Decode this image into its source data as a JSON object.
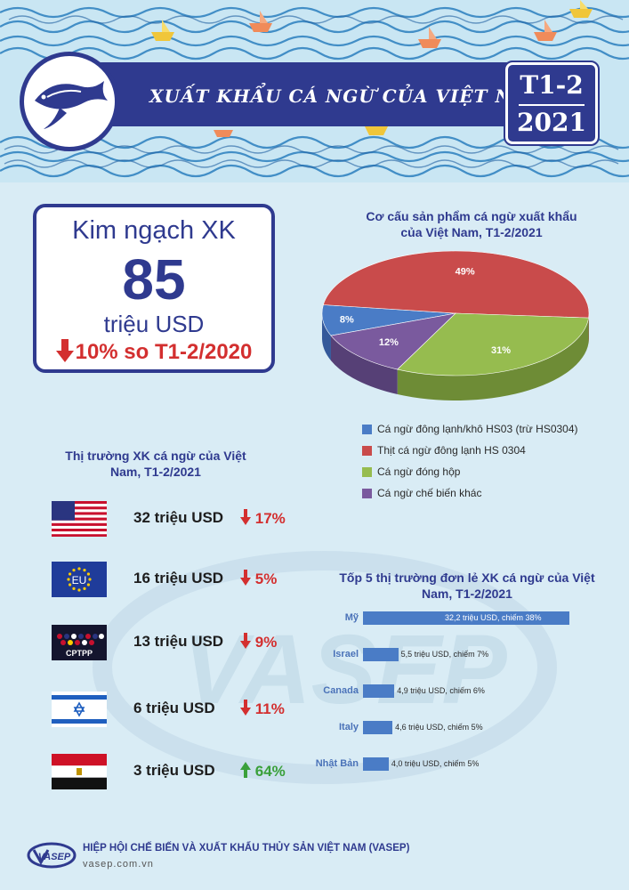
{
  "header": {
    "title": "XUẤT KHẨU CÁ NGỪ CỦA VIỆT NAM",
    "period_line1": "T1-2",
    "period_line2": "2021"
  },
  "summary": {
    "label": "Kim ngạch XK",
    "value": "85",
    "unit": "triệu USD",
    "change": "10% so T1-2/2020",
    "change_direction": "down"
  },
  "pie_title": "Cơ cấu sản phẩm cá ngừ xuất khẩu của Việt Nam, T1-2/2021",
  "markets_title": "Thị trường XK cá ngừ của Việt Nam, T1-2/2021",
  "markets": [
    {
      "flag": "usa-flag",
      "value": "32 triệu USD",
      "change": "17%",
      "direction": "down"
    },
    {
      "flag": "eu-flag",
      "flag_text": "EU",
      "value": "16 triệu USD",
      "change": "5%",
      "direction": "down"
    },
    {
      "flag": "cptpp-flag",
      "flag_text": "CPTPP",
      "value": "13 triệu USD",
      "change": "9%",
      "direction": "down"
    },
    {
      "flag": "israel-flag",
      "value": "6 triệu USD",
      "change": "11%",
      "direction": "down"
    },
    {
      "flag": "egypt-flag",
      "value": "3 triệu USD",
      "change": "64%",
      "direction": "up"
    }
  ],
  "bar_title": "Tốp 5 thị trường đơn lẻ XK cá ngừ của Việt Nam, T1-2/2021",
  "chart_data": [
    {
      "type": "pie",
      "title": "Cơ cấu sản phẩm cá ngừ xuất khẩu của Việt Nam, T1-2/2021",
      "categories": [
        "Cá ngừ đông lạnh/khô HS03 (trừ HS0304)",
        "Thịt cá ngừ đông lạnh HS 0304",
        "Cá ngừ đóng hộp",
        "Cá ngừ chế biến khác"
      ],
      "values": [
        8,
        49,
        31,
        12
      ],
      "data_labels": [
        "8%",
        "49%",
        "31%",
        "12%"
      ],
      "colors": [
        "#4a7cc6",
        "#c94b4b",
        "#96bc4f",
        "#7a5a9e"
      ],
      "side_colors": [
        "#34599a",
        "#943434",
        "#6e8c36",
        "#564076"
      ],
      "legend_position": "bottom"
    },
    {
      "type": "bar",
      "orientation": "horizontal",
      "title": "Tốp 5 thị trường đơn lẻ XK cá ngừ của Việt Nam, T1-2/2021",
      "categories": [
        "Mỹ",
        "Israel",
        "Canada",
        "Italy",
        "Nhật Bản"
      ],
      "values": [
        32.2,
        5.5,
        4.9,
        4.6,
        4.0
      ],
      "data_labels": [
        "32,2 triệu USD, chiếm 38%",
        "5,5  triệu USD, chiếm 7%",
        "4,9 triệu USD, chiếm 6%",
        "4,6 triệu USD, chiếm 5%",
        "4,0 triệu USD, chiếm 5%"
      ],
      "color": "#4a7cc6"
    }
  ],
  "footer": {
    "org": "HIỆP HỘI CHẾ BIẾN VÀ XUẤT KHẨU THỦY SẢN VIỆT NAM (VASEP)",
    "url": "vasep.com.vn",
    "logo_text": "VASEP"
  },
  "watermark_text": "VASEP",
  "colors": {
    "brand": "#2f3a8f",
    "down": "#d32f2f",
    "up": "#3aa03a",
    "background": "#d9ecf5"
  }
}
